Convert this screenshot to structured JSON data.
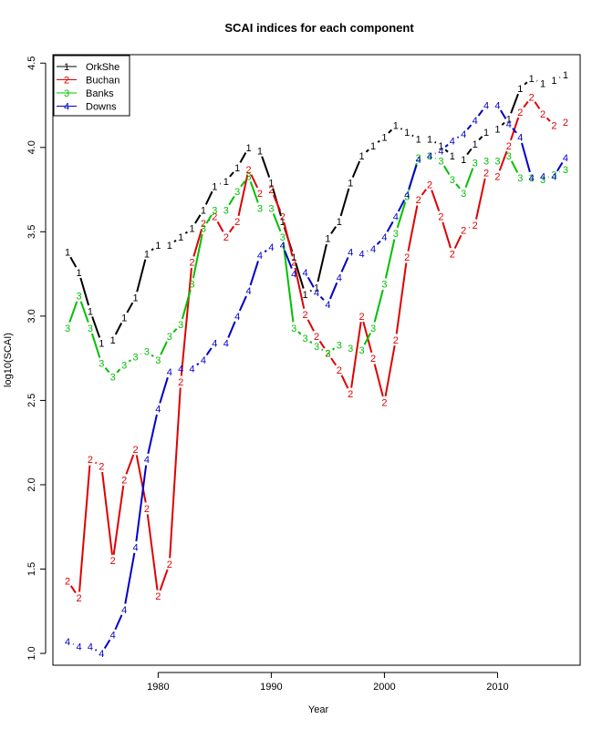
{
  "chart_data": {
    "type": "line",
    "title": "SCAI indices for each component",
    "xlabel": "Year",
    "ylabel": "log10(SCAI)",
    "xlim": [
      1970.7,
      2017.3
    ],
    "ylim": [
      0.93,
      4.55
    ],
    "xticks": [
      1980,
      1990,
      2000,
      2010
    ],
    "yticks": [
      1.0,
      1.5,
      2.0,
      2.5,
      3.0,
      3.5,
      4.0,
      4.5
    ],
    "ytick_labels": [
      "1.0",
      "1.5",
      "2.0",
      "2.5",
      "3.0",
      "3.5",
      "4.0",
      "4.5"
    ],
    "grid": false,
    "legend_position": "top-left",
    "x": [
      1972,
      1973,
      1974,
      1975,
      1976,
      1977,
      1978,
      1979,
      1980,
      1981,
      1982,
      1983,
      1984,
      1985,
      1986,
      1987,
      1988,
      1989,
      1990,
      1991,
      1992,
      1993,
      1994,
      1995,
      1996,
      1997,
      1998,
      1999,
      2000,
      2001,
      2002,
      2003,
      2004,
      2005,
      2006,
      2007,
      2008,
      2009,
      2010,
      2011,
      2012,
      2013,
      2014,
      2015,
      2016
    ],
    "series": [
      {
        "name": "OrkShe",
        "marker": "1",
        "color": "#000000",
        "values": [
          3.38,
          3.26,
          3.03,
          2.84,
          2.86,
          2.99,
          3.11,
          3.37,
          3.42,
          3.42,
          3.47,
          3.52,
          3.63,
          3.77,
          3.8,
          3.88,
          4.0,
          3.98,
          3.79,
          3.56,
          3.35,
          3.13,
          3.17,
          3.46,
          3.56,
          3.79,
          3.95,
          4.01,
          4.06,
          4.13,
          4.09,
          4.05,
          4.05,
          4.01,
          3.95,
          3.93,
          4.02,
          4.09,
          4.11,
          4.17,
          4.35,
          4.41,
          4.38,
          4.4,
          4.43
        ]
      },
      {
        "name": "Buchan",
        "marker": "2",
        "color": "#DF0000",
        "values": [
          1.43,
          1.33,
          2.15,
          2.11,
          1.55,
          2.03,
          2.21,
          1.86,
          1.34,
          1.53,
          2.61,
          3.32,
          3.55,
          3.59,
          3.47,
          3.56,
          3.87,
          3.73,
          3.75,
          3.59,
          3.32,
          3.01,
          2.88,
          2.78,
          2.68,
          2.54,
          3.0,
          2.75,
          2.49,
          2.86,
          3.35,
          3.69,
          3.78,
          3.59,
          3.37,
          3.51,
          3.54,
          3.85,
          3.83,
          4.01,
          4.21,
          4.3,
          4.2,
          4.13,
          4.15
        ]
      },
      {
        "name": "Banks",
        "marker": "3",
        "color": "#00C000",
        "values": [
          2.93,
          3.12,
          2.93,
          2.72,
          2.64,
          2.71,
          2.76,
          2.79,
          2.74,
          2.88,
          2.95,
          3.19,
          3.52,
          3.63,
          3.63,
          3.74,
          3.83,
          3.64,
          3.64,
          3.47,
          2.93,
          2.87,
          2.82,
          2.78,
          2.83,
          2.81,
          2.8,
          2.93,
          3.19,
          3.49,
          3.71,
          3.94,
          3.95,
          3.92,
          3.81,
          3.73,
          3.91,
          3.92,
          3.92,
          3.95,
          3.82,
          3.82,
          3.81,
          3.84,
          3.87
        ]
      },
      {
        "name": "Downs",
        "marker": "4",
        "color": "#0000C8",
        "values": [
          1.07,
          1.04,
          1.04,
          1.0,
          1.11,
          1.26,
          1.63,
          2.15,
          2.45,
          2.67,
          2.69,
          2.69,
          2.74,
          2.84,
          2.84,
          3.0,
          3.15,
          3.36,
          3.41,
          3.42,
          3.25,
          3.26,
          3.14,
          3.07,
          3.23,
          3.38,
          3.37,
          3.4,
          3.47,
          3.59,
          3.72,
          3.93,
          3.95,
          3.98,
          4.04,
          4.08,
          4.16,
          4.25,
          4.25,
          4.14,
          4.06,
          3.82,
          3.83,
          3.83,
          3.94
        ]
      }
    ]
  }
}
